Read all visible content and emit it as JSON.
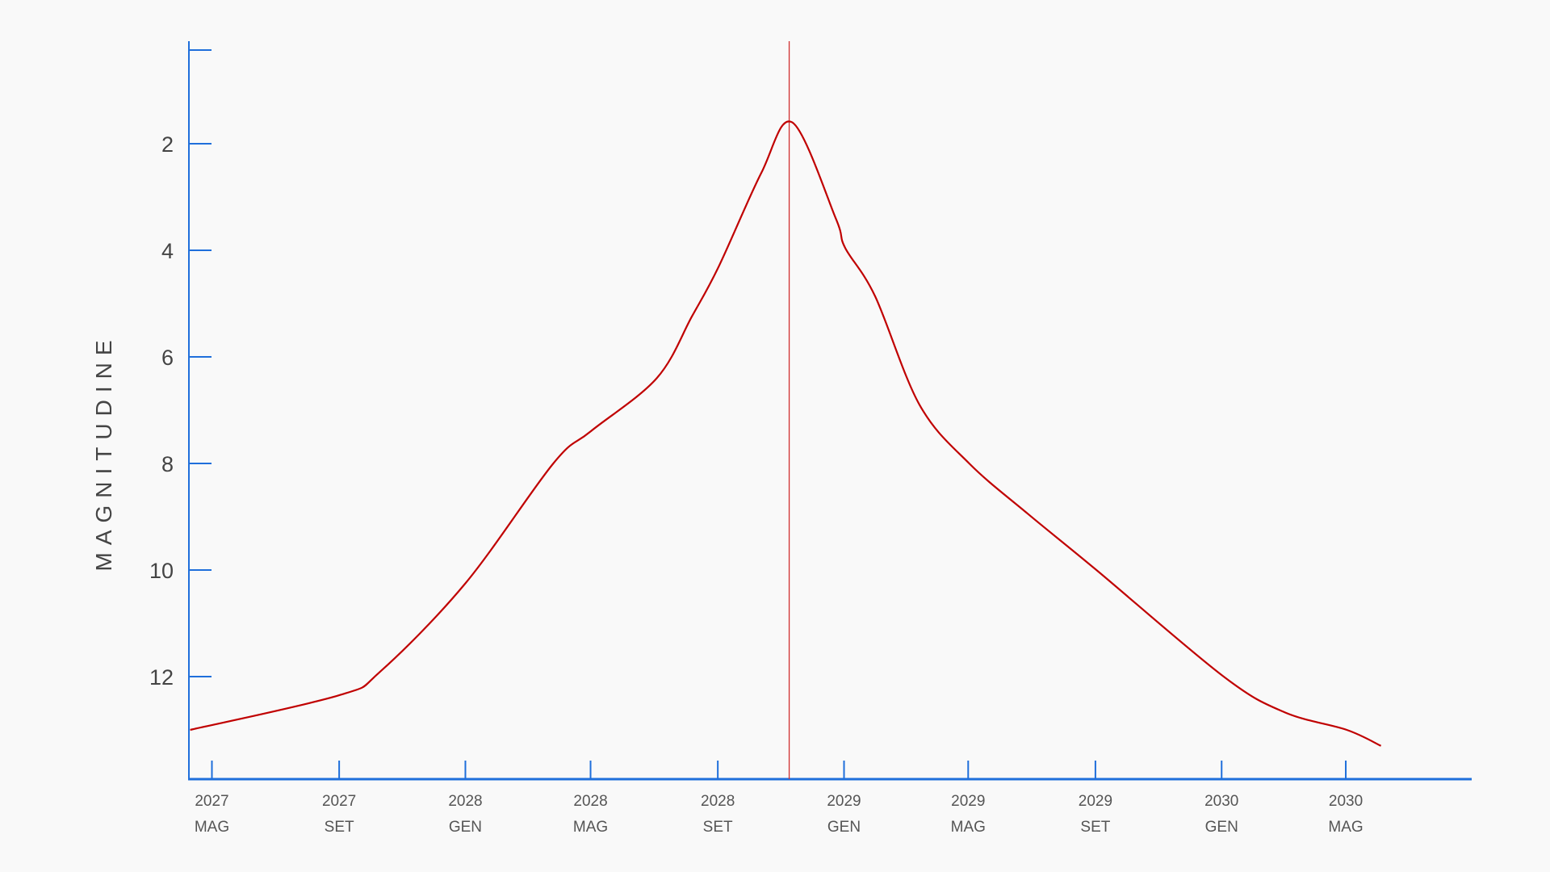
{
  "chart_data": {
    "type": "line",
    "title": "",
    "xlabel": "",
    "ylabel": "MAGNITUDINE",
    "y_inverted": true,
    "ylim": [
      0.25,
      13.9
    ],
    "xlim": [
      "2027-04-10",
      "2030-09-20"
    ],
    "grid": false,
    "y_ticks": [
      2,
      4,
      6,
      8,
      10,
      12
    ],
    "x_ticks": [
      {
        "date": "2027-05-01",
        "year": "2027",
        "month": "MAG"
      },
      {
        "date": "2027-09-01",
        "year": "2027",
        "month": "SET"
      },
      {
        "date": "2028-01-01",
        "year": "2028",
        "month": "GEN"
      },
      {
        "date": "2028-05-01",
        "year": "2028",
        "month": "MAG"
      },
      {
        "date": "2028-09-01",
        "year": "2028",
        "month": "SET"
      },
      {
        "date": "2029-01-01",
        "year": "2029",
        "month": "GEN"
      },
      {
        "date": "2029-05-01",
        "year": "2029",
        "month": "MAG"
      },
      {
        "date": "2029-09-01",
        "year": "2029",
        "month": "SET"
      },
      {
        "date": "2030-01-01",
        "year": "2030",
        "month": "GEN"
      },
      {
        "date": "2030-05-01",
        "year": "2030",
        "month": "MAG"
      }
    ],
    "marker_line_date": "2028-11-09",
    "series": [
      {
        "points": [
          [
            "2027-04-10",
            13.0
          ],
          [
            "2027-09-01",
            12.35
          ],
          [
            "2027-10-11",
            11.9
          ],
          [
            "2028-01-01",
            10.25
          ],
          [
            "2028-03-26",
            8.0
          ],
          [
            "2028-05-01",
            7.4
          ],
          [
            "2028-07-04",
            6.4
          ],
          [
            "2028-08-07",
            5.24
          ],
          [
            "2028-09-02",
            4.3
          ],
          [
            "2028-10-13",
            2.55
          ],
          [
            "2028-11-12",
            1.6
          ],
          [
            "2028-12-24",
            3.4
          ],
          [
            "2029-01-02",
            3.95
          ],
          [
            "2029-01-31",
            4.86
          ],
          [
            "2029-03-15",
            6.9
          ],
          [
            "2029-05-02",
            8.0
          ],
          [
            "2029-06-28",
            8.95
          ],
          [
            "2029-09-02",
            10.0
          ],
          [
            "2030-01-03",
            12.0
          ],
          [
            "2030-03-03",
            12.67
          ],
          [
            "2030-05-02",
            13.0
          ],
          [
            "2030-06-04",
            13.3
          ]
        ]
      }
    ],
    "colors": {
      "axis": "#1f6fdb",
      "curve": "#c00000",
      "marker_line": "#d03030",
      "text": "#444444",
      "background": "#f9f9f9"
    }
  }
}
